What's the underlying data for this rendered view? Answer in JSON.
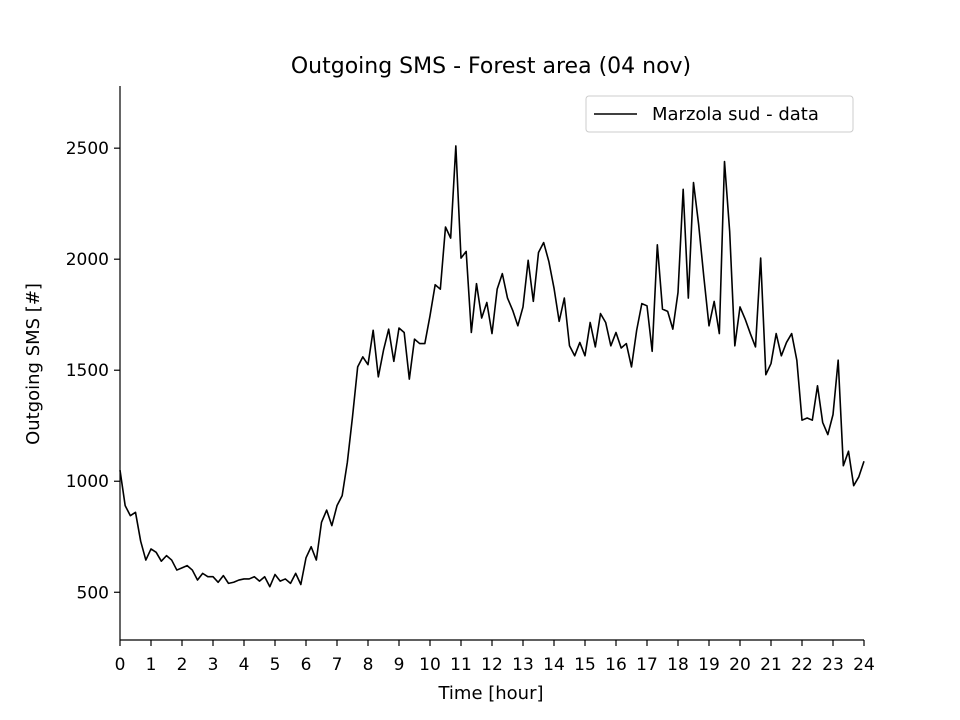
{
  "chart_data": {
    "type": "line",
    "title": "Outgoing SMS - Forest area (04 nov)",
    "xlabel": "Time [hour]",
    "ylabel": "Outgoing SMS [#]",
    "xlim": [
      0,
      24
    ],
    "ylim": [
      285,
      2780
    ],
    "x_ticks": [
      0,
      1,
      2,
      3,
      4,
      5,
      6,
      7,
      8,
      9,
      10,
      11,
      12,
      13,
      14,
      15,
      16,
      17,
      18,
      19,
      20,
      21,
      22,
      23,
      24
    ],
    "y_ticks": [
      500,
      1000,
      1500,
      2000,
      2500
    ],
    "grid": false,
    "legend_position": "top-right",
    "series": [
      {
        "name": "Marzola sud - data",
        "color": "#000000",
        "x": [
          0,
          0.1667,
          0.3333,
          0.5,
          0.6667,
          0.8333,
          1,
          1.1667,
          1.3333,
          1.5,
          1.6667,
          1.8333,
          2,
          2.1667,
          2.3333,
          2.5,
          2.6667,
          2.8333,
          3,
          3.1667,
          3.3333,
          3.5,
          3.6667,
          3.8333,
          4,
          4.1667,
          4.3333,
          4.5,
          4.6667,
          4.8333,
          5,
          5.1667,
          5.3333,
          5.5,
          5.6667,
          5.8333,
          6,
          6.1667,
          6.3333,
          6.5,
          6.6667,
          6.8333,
          7,
          7.1667,
          7.3333,
          7.5,
          7.6667,
          7.8333,
          8,
          8.1667,
          8.3333,
          8.5,
          8.6667,
          8.8333,
          9,
          9.1667,
          9.3333,
          9.5,
          9.6667,
          9.8333,
          10,
          10.1667,
          10.3333,
          10.5,
          10.6667,
          10.8333,
          11,
          11.1667,
          11.3333,
          11.5,
          11.6667,
          11.8333,
          12,
          12.1667,
          12.3333,
          12.5,
          12.6667,
          12.8333,
          13,
          13.1667,
          13.3333,
          13.5,
          13.6667,
          13.8333,
          14,
          14.1667,
          14.3333,
          14.5,
          14.6667,
          14.8333,
          15,
          15.1667,
          15.3333,
          15.5,
          15.6667,
          15.8333,
          16,
          16.1667,
          16.3333,
          16.5,
          16.6667,
          16.8333,
          17,
          17.1667,
          17.3333,
          17.5,
          17.6667,
          17.8333,
          18,
          18.1667,
          18.3333,
          18.5,
          18.6667,
          18.8333,
          19,
          19.1667,
          19.3333,
          19.5,
          19.6667,
          19.8333,
          20,
          20.1667,
          20.3333,
          20.5,
          20.6667,
          20.8333,
          21,
          21.1667,
          21.3333,
          21.5,
          21.6667,
          21.8333,
          22,
          22.1667,
          22.3333,
          22.5,
          22.6667,
          22.8333,
          23,
          23.1667,
          23.3333,
          23.5,
          23.6667,
          23.8333,
          24
        ],
        "values": [
          1050,
          890,
          845,
          860,
          730,
          645,
          695,
          680,
          640,
          665,
          645,
          600,
          610,
          620,
          600,
          555,
          585,
          570,
          570,
          545,
          575,
          540,
          545,
          555,
          560,
          560,
          570,
          550,
          570,
          525,
          580,
          550,
          560,
          540,
          585,
          535,
          655,
          705,
          645,
          815,
          870,
          800,
          890,
          935,
          1085,
          1290,
          1515,
          1560,
          1525,
          1680,
          1470,
          1590,
          1685,
          1540,
          1690,
          1670,
          1460,
          1640,
          1620,
          1620,
          1745,
          1885,
          1865,
          2145,
          2095,
          2510,
          2005,
          2035,
          1670,
          1890,
          1735,
          1805,
          1665,
          1865,
          1935,
          1825,
          1770,
          1700,
          1785,
          1995,
          1810,
          2030,
          2075,
          1990,
          1870,
          1720,
          1825,
          1610,
          1565,
          1625,
          1565,
          1715,
          1605,
          1755,
          1715,
          1610,
          1670,
          1600,
          1620,
          1515,
          1680,
          1800,
          1790,
          1585,
          2065,
          1775,
          1765,
          1685,
          1850,
          2315,
          1825,
          2345,
          2155,
          1920,
          1700,
          1810,
          1665,
          2440,
          2125,
          1610,
          1785,
          1730,
          1665,
          1605,
          2005,
          1480,
          1530,
          1665,
          1565,
          1625,
          1665,
          1545,
          1275,
          1285,
          1275,
          1430,
          1265,
          1210,
          1300,
          1545,
          1070,
          1135,
          980,
          1020,
          1090
        ]
      }
    ]
  }
}
